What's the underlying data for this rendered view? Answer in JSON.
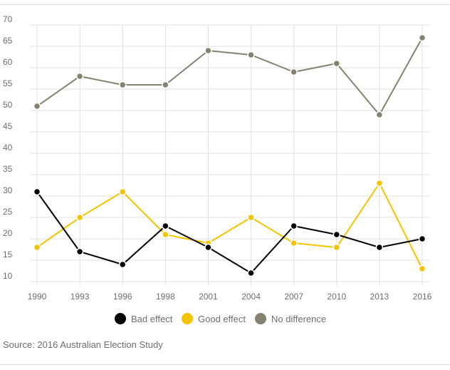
{
  "chart_data": {
    "type": "line",
    "categories": [
      "1990",
      "1993",
      "1996",
      "1998",
      "2001",
      "2004",
      "2007",
      "2010",
      "2013",
      "2016"
    ],
    "y_ticks": [
      10,
      15,
      20,
      25,
      30,
      35,
      40,
      45,
      50,
      55,
      60,
      65,
      70
    ],
    "ylim": [
      10,
      70
    ],
    "grid": true,
    "legend_position": "bottom",
    "series": [
      {
        "name": "Bad effect",
        "color": "#000000",
        "values": [
          31,
          17,
          14,
          23,
          18,
          12,
          23,
          21,
          18,
          20
        ]
      },
      {
        "name": "Good effect",
        "color": "#f5c400",
        "values": [
          18,
          25,
          31,
          21,
          19,
          25,
          19,
          18,
          33,
          13
        ]
      },
      {
        "name": "No difference",
        "color": "#858270",
        "values": [
          51,
          58,
          56,
          56,
          64,
          63,
          59,
          61,
          49,
          67
        ]
      }
    ]
  },
  "source": "Source: 2016 Australian Election Study"
}
